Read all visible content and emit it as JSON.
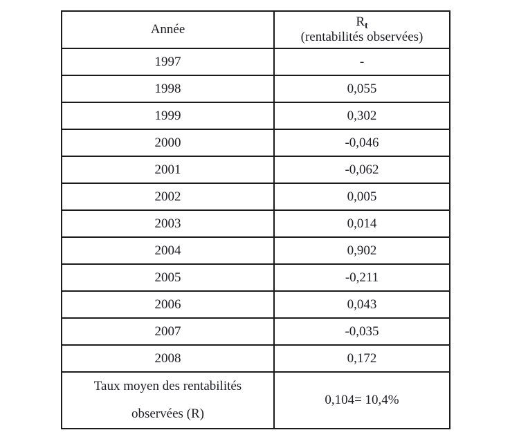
{
  "page": {
    "background_color": "#ffffff"
  },
  "table": {
    "border_color": "#1a1a1a",
    "text_color": "#1c1c22",
    "header": {
      "year_col_label": "Année",
      "value_col_symbol": "R",
      "value_col_subscript": "t",
      "value_col_caption": "(rentabilités observées)"
    },
    "rows": [
      {
        "year": "1997",
        "value": "-"
      },
      {
        "year": "1998",
        "value": "0,055"
      },
      {
        "year": "1999",
        "value": "0,302"
      },
      {
        "year": "2000",
        "value": "-0,046"
      },
      {
        "year": "2001",
        "value": "-0,062"
      },
      {
        "year": "2002",
        "value": "0,005"
      },
      {
        "year": "2003",
        "value": "0,014"
      },
      {
        "year": "2004",
        "value": "0,902"
      },
      {
        "year": "2005",
        "value": "-0,211"
      },
      {
        "year": "2006",
        "value": "0,043"
      },
      {
        "year": "2007",
        "value": "-0,035"
      },
      {
        "year": "2008",
        "value": "0,172"
      }
    ],
    "footer": {
      "label_line1": "Taux moyen des rentabilités",
      "label_line2": "observées (R)",
      "value": "0,104= 10,4%"
    }
  },
  "chart_data": {
    "type": "table",
    "title": "Rentabilités observées par année",
    "columns": [
      "Année",
      "Rt (rentabilités observées)"
    ],
    "categories": [
      "1997",
      "1998",
      "1999",
      "2000",
      "2001",
      "2002",
      "2003",
      "2004",
      "2005",
      "2006",
      "2007",
      "2008"
    ],
    "values": [
      null,
      0.055,
      0.302,
      -0.046,
      -0.062,
      0.005,
      0.014,
      0.902,
      -0.211,
      0.043,
      -0.035,
      0.172
    ],
    "summary": {
      "label": "Taux moyen des rentabilités observées (R)",
      "value": 0.104,
      "value_percent": "10,4%"
    }
  }
}
